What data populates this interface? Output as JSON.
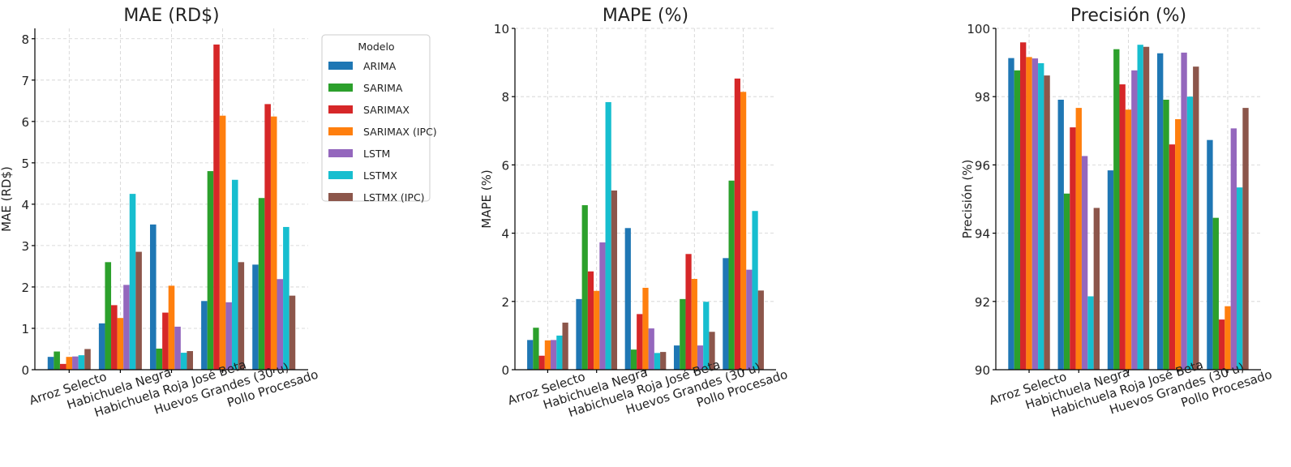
{
  "chart_data": [
    {
      "type": "bar",
      "title": "MAE (RD$)",
      "xlabel": "",
      "ylabel": "MAE (RD$)",
      "ylim": [
        0,
        8.25
      ],
      "yticks": [
        0,
        1,
        2,
        3,
        4,
        5,
        6,
        7,
        8
      ],
      "grid": true,
      "categories": [
        "Arroz Selecto",
        "Habichuela Negra",
        "Habichuela Roja José Beta",
        "Huevos Grandes (30 u)",
        "Pollo Procesado"
      ],
      "series": [
        {
          "name": "ARIMA",
          "values": [
            0.31,
            1.12,
            3.51,
            1.66,
            2.54
          ]
        },
        {
          "name": "SARIMA",
          "values": [
            0.44,
            2.6,
            0.51,
            4.8,
            4.15
          ]
        },
        {
          "name": "SARIMAX",
          "values": [
            0.14,
            1.56,
            1.38,
            7.86,
            6.42
          ]
        },
        {
          "name": "SARIMAX (IPC)",
          "values": [
            0.31,
            1.25,
            2.03,
            6.14,
            6.12
          ]
        },
        {
          "name": "LSTM",
          "values": [
            0.32,
            2.05,
            1.04,
            1.63,
            2.19
          ]
        },
        {
          "name": "LSTMX",
          "values": [
            0.35,
            4.25,
            0.41,
            4.59,
            3.45
          ]
        },
        {
          "name": "LSTMX (IPC)",
          "values": [
            0.5,
            2.85,
            0.45,
            2.6,
            1.79
          ]
        }
      ],
      "legend": {
        "title": "Modelo",
        "placement": "right"
      }
    },
    {
      "type": "bar",
      "title": "MAPE (%)",
      "xlabel": "",
      "ylabel": "MAPE (%)",
      "ylim": [
        0,
        10
      ],
      "yticks": [
        0,
        2,
        4,
        6,
        8,
        10
      ],
      "grid": true,
      "categories": [
        "Arroz Selecto",
        "Habichuela Negra",
        "Habichuela Roja José Beta",
        "Huevos Grandes (30 u)",
        "Pollo Procesado"
      ],
      "series": [
        {
          "name": "ARIMA",
          "values": [
            0.87,
            2.07,
            4.15,
            0.71,
            3.27
          ]
        },
        {
          "name": "SARIMA",
          "values": [
            1.23,
            4.82,
            0.59,
            2.07,
            5.54
          ]
        },
        {
          "name": "SARIMAX",
          "values": [
            0.41,
            2.88,
            1.63,
            3.39,
            8.53
          ]
        },
        {
          "name": "SARIMAX (IPC)",
          "values": [
            0.86,
            2.31,
            2.4,
            2.66,
            8.14
          ]
        },
        {
          "name": "LSTM",
          "values": [
            0.87,
            3.73,
            1.21,
            0.71,
            2.93
          ]
        },
        {
          "name": "LSTMX",
          "values": [
            1.0,
            7.84,
            0.49,
            1.99,
            4.65
          ]
        },
        {
          "name": "LSTMX (IPC)",
          "values": [
            1.38,
            5.25,
            0.52,
            1.11,
            2.32
          ]
        }
      ]
    },
    {
      "type": "bar",
      "title": "Precisión (%)",
      "xlabel": "",
      "ylabel": "Precisión (%)",
      "ylim": [
        90,
        100
      ],
      "yticks": [
        90,
        92,
        94,
        96,
        98,
        100
      ],
      "grid": true,
      "categories": [
        "Arroz Selecto",
        "Habichuela Negra",
        "Habichuela Roja José Beta",
        "Huevos Grandes (30 u)",
        "Pollo Procesado"
      ],
      "series": [
        {
          "name": "ARIMA",
          "values": [
            99.13,
            97.91,
            95.84,
            99.27,
            96.73
          ]
        },
        {
          "name": "SARIMA",
          "values": [
            98.77,
            95.16,
            99.39,
            97.91,
            94.45
          ]
        },
        {
          "name": "SARIMAX",
          "values": [
            99.59,
            97.1,
            98.36,
            96.6,
            91.47
          ]
        },
        {
          "name": "SARIMAX (IPC)",
          "values": [
            99.16,
            97.67,
            97.62,
            97.34,
            91.86
          ]
        },
        {
          "name": "LSTM",
          "values": [
            99.12,
            96.26,
            98.77,
            99.29,
            97.07
          ]
        },
        {
          "name": "LSTMX",
          "values": [
            98.98,
            92.15,
            99.52,
            98.0,
            95.34
          ]
        },
        {
          "name": "LSTMX (IPC)",
          "values": [
            98.62,
            94.74,
            99.46,
            98.88,
            97.67
          ]
        }
      ]
    }
  ],
  "colors": [
    "#1f77b4",
    "#2ca02c",
    "#d62728",
    "#ff7f0e",
    "#9467bd",
    "#17becf",
    "#8c564b"
  ]
}
